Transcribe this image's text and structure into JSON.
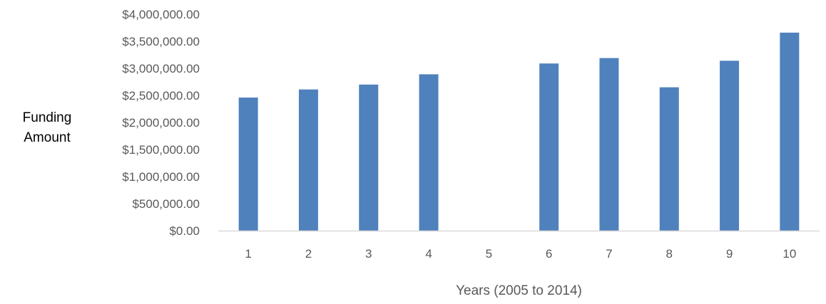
{
  "chart_data": {
    "type": "bar",
    "title": "",
    "xlabel": "Years (2005 to 2014)",
    "ylabel_lines": [
      "Funding",
      "Amount"
    ],
    "categories": [
      "1",
      "2",
      "3",
      "4",
      "5",
      "6",
      "7",
      "8",
      "9",
      "10"
    ],
    "values": [
      2460000,
      2610000,
      2700000,
      2890000,
      0,
      3090000,
      3190000,
      2650000,
      3140000,
      3660000
    ],
    "ylim": [
      0,
      4000000
    ],
    "yticks": [
      0,
      500000,
      1000000,
      1500000,
      2000000,
      2500000,
      3000000,
      3500000,
      4000000
    ],
    "ytick_labels": [
      "$0.00",
      "$500,000.00",
      "$1,000,000.00",
      "$1,500,000.00",
      "$2,000,000.00",
      "$2,500,000.00",
      "$3,000,000.00",
      "$3,500,000.00",
      "$4,000,000.00"
    ],
    "grid": false,
    "legend": "none",
    "bar_color": "#4F81BD",
    "axis_color": "#D9D9D9",
    "text_color": "#595959"
  }
}
